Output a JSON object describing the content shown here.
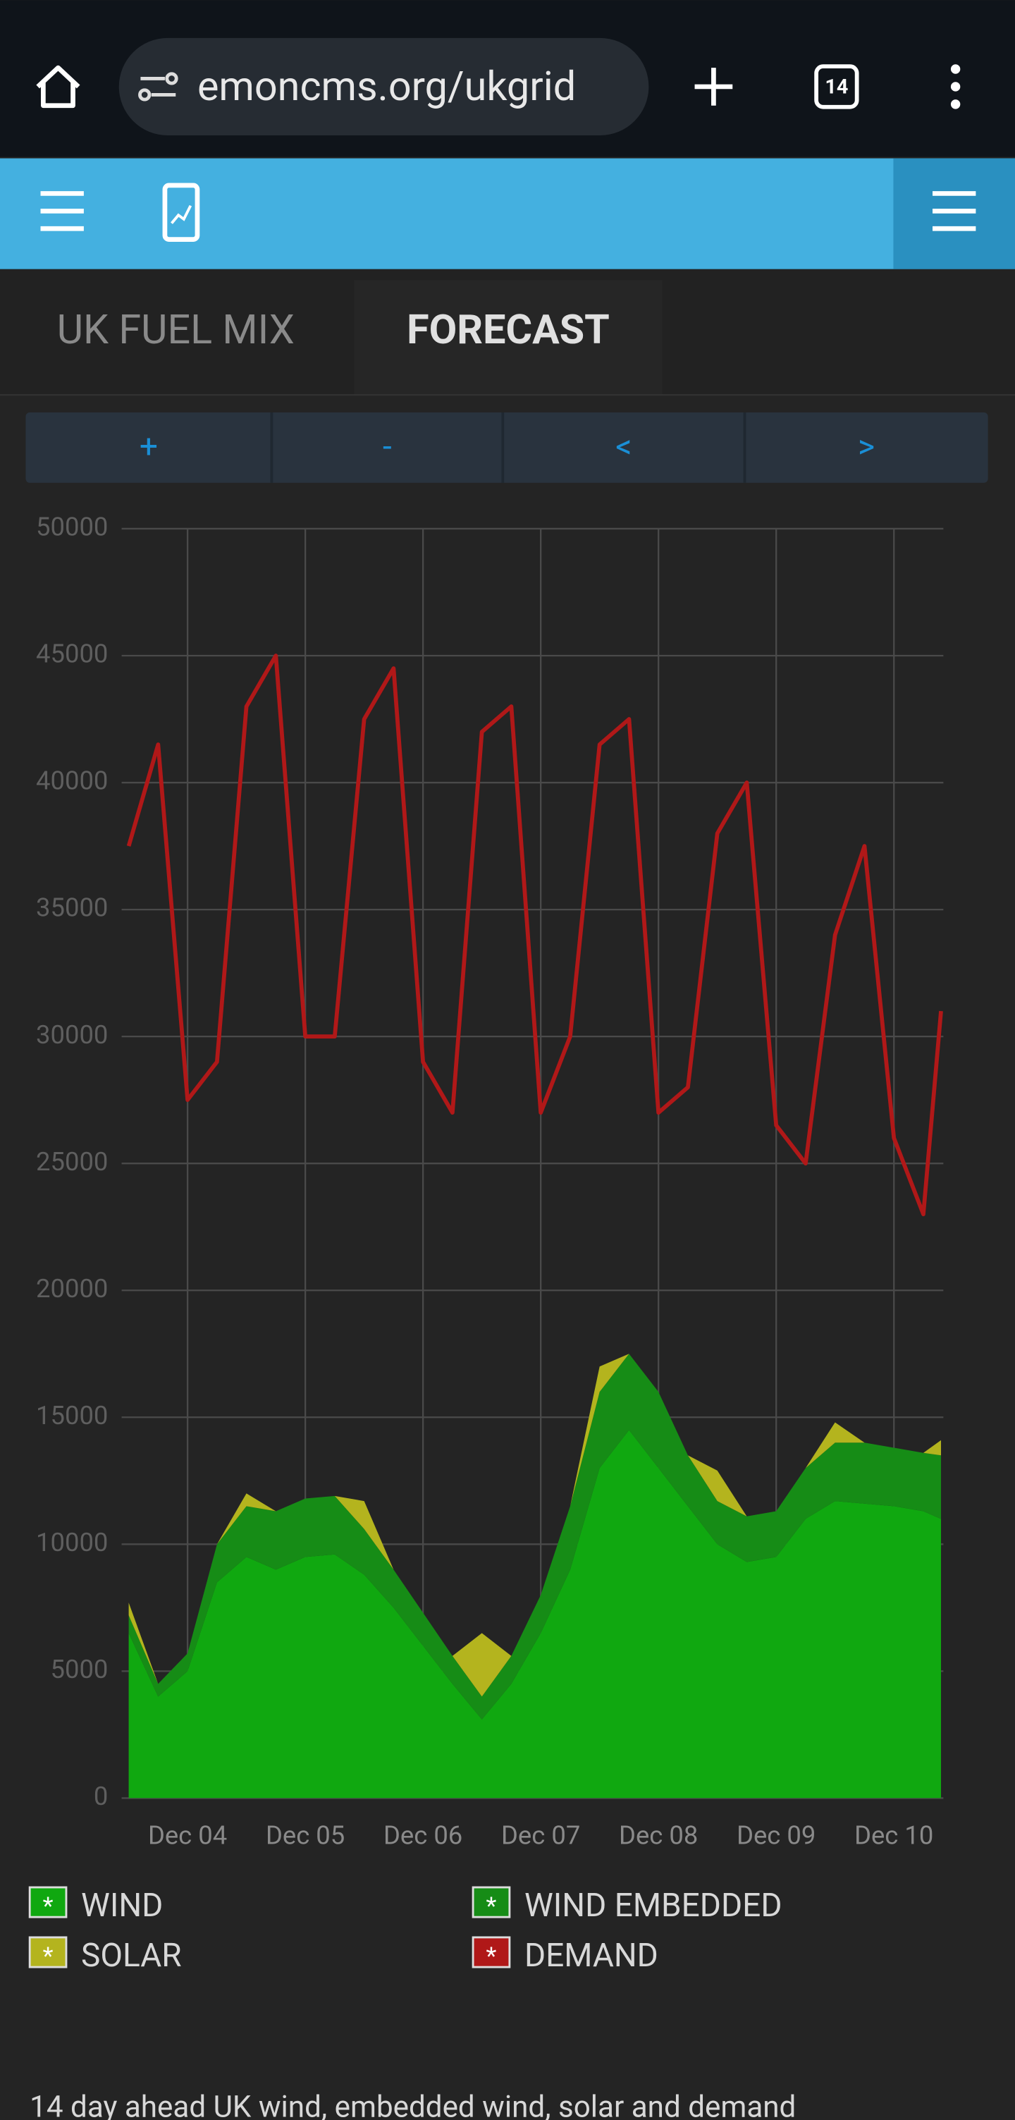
{
  "browser": {
    "url": "emoncms.org/ukgrid",
    "tab_count": "14"
  },
  "tabs": [
    "UK FUEL MIX",
    "FORECAST"
  ],
  "buttons": [
    "+",
    "-",
    "<",
    ">"
  ],
  "legend_symbol": "*",
  "chart_data": {
    "type": "area",
    "stacked": true,
    "grid": true,
    "x": [
      3.5,
      3.75,
      4.0,
      4.25,
      4.5,
      4.75,
      5.0,
      5.25,
      5.5,
      5.75,
      6.0,
      6.25,
      6.5,
      6.75,
      7.0,
      7.25,
      7.5,
      7.75,
      8.0,
      8.25,
      8.5,
      8.75,
      9.0,
      9.25,
      9.5,
      9.75,
      10.0,
      10.25,
      10.4
    ],
    "xlim": [
      3.44,
      10.42
    ],
    "xticks": [
      {
        "value": 4,
        "label": "Dec 04"
      },
      {
        "value": 5,
        "label": "Dec 05"
      },
      {
        "value": 6,
        "label": "Dec 06"
      },
      {
        "value": 7,
        "label": "Dec 07"
      },
      {
        "value": 8,
        "label": "Dec 08"
      },
      {
        "value": 9,
        "label": "Dec 09"
      },
      {
        "value": 10,
        "label": "Dec 10"
      }
    ],
    "ylim": [
      0,
      50000
    ],
    "yticks": [
      0,
      5000,
      10000,
      15000,
      20000,
      25000,
      30000,
      35000,
      40000,
      45000,
      50000
    ],
    "series": [
      {
        "name": "WIND",
        "color": "#10a810",
        "values": [
          6500,
          4000,
          5000,
          8500,
          9500,
          9000,
          9500,
          9600,
          8800,
          7500,
          6000,
          4500,
          3100,
          4500,
          6500,
          9000,
          13000,
          14500,
          13000,
          11500,
          10000,
          9300,
          9500,
          11000,
          11700,
          11600,
          11500,
          11300,
          11000
        ]
      },
      {
        "name": "WIND EMBEDDED",
        "color": "#168c16",
        "values": [
          700,
          500,
          700,
          1500,
          2000,
          2300,
          2300,
          2300,
          1800,
          1500,
          1300,
          1100,
          900,
          1100,
          1500,
          2500,
          3000,
          3000,
          3000,
          2000,
          1700,
          1800,
          1800,
          2000,
          2300,
          2400,
          2300,
          2300,
          2500
        ]
      },
      {
        "name": "SOLAR",
        "color": "#b4b41e",
        "values": [
          500,
          0,
          0,
          0,
          500,
          0,
          0,
          0,
          1100,
          0,
          0,
          0,
          2500,
          0,
          0,
          0,
          1000,
          0,
          0,
          0,
          1200,
          0,
          0,
          0,
          800,
          0,
          0,
          0,
          600
        ]
      },
      {
        "name": "DEMAND",
        "color": "#b01818",
        "type": "line",
        "values": [
          37500,
          41500,
          27500,
          29000,
          43000,
          45000,
          30000,
          30000,
          42500,
          44500,
          29000,
          27000,
          42000,
          43000,
          27000,
          30000,
          41500,
          42500,
          27000,
          28000,
          38000,
          40000,
          26500,
          25000,
          34000,
          37500,
          26000,
          23000,
          31000
        ]
      }
    ]
  },
  "footer": {
    "text": "14 day ahead UK wind, embedded wind, solar and demand"
  }
}
